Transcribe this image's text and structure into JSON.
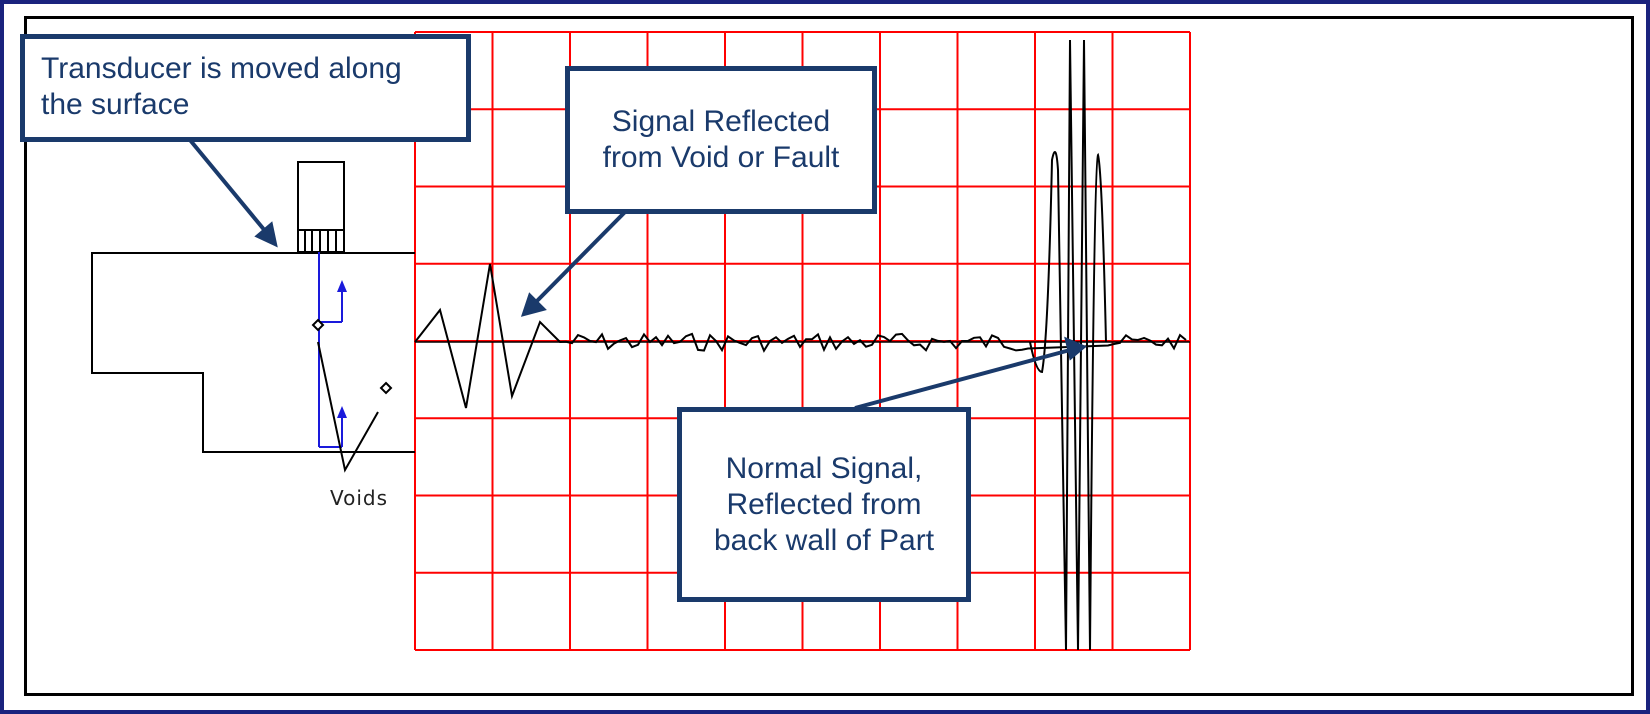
{
  "callouts": {
    "transducer": "Transducer is moved along the surface",
    "void_signal": "Signal Reflected from Void or Fault",
    "backwall_signal": "Normal Signal, Reflected  from back wall of Part"
  },
  "part_diagram": {
    "voids_label": "Voids"
  },
  "colors": {
    "outer_border": "#1a237e",
    "callout_border": "#1a3a6b",
    "callout_text": "#1a3a6b",
    "grid": "#ff0000",
    "beam_path": "#1a1adb",
    "signal": "#000000"
  },
  "icons": {
    "transducer": "transducer-probe-icon"
  }
}
